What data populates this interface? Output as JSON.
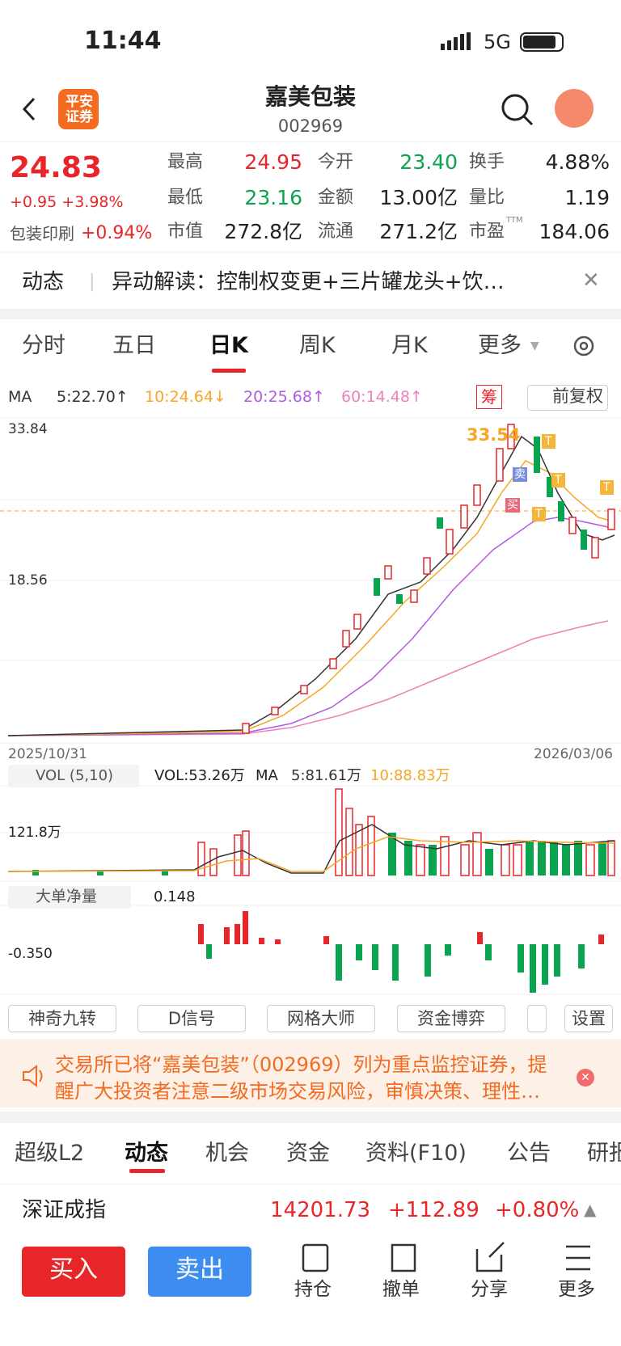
{
  "status_bar": {
    "time": "11:44",
    "network": "5G"
  },
  "header": {
    "logo": [
      "平安",
      "证券"
    ],
    "title": "嘉美包装",
    "code": "002969"
  },
  "quote": {
    "price": "24.83",
    "change": "+0.95",
    "change_pct": "+3.98%",
    "sector": "包装印刷",
    "sector_change": "+0.94%",
    "stats": [
      [
        {
          "label": "最高",
          "value": "24.95"
        },
        {
          "label": "今开",
          "value": "23.40"
        },
        {
          "label": "换手",
          "value": "4.88%"
        }
      ],
      [
        {
          "label": "最低",
          "value": "23.16"
        },
        {
          "label": "金额",
          "value": "13.00亿"
        },
        {
          "label": "量比",
          "value": "1.19"
        }
      ],
      [
        {
          "label": "市值",
          "value": "272.8亿"
        },
        {
          "label": "流通",
          "value": "271.2亿"
        },
        {
          "label": "市盈",
          "sup": "TTM",
          "value": "184.06"
        }
      ]
    ]
  },
  "news": {
    "tag": "动态",
    "text": "异动解读：控制权变更+三片罐龙头+饮…"
  },
  "chart_tabs": [
    "分时",
    "五日",
    "日K",
    "周K",
    "月K",
    "更多"
  ],
  "ma_row": {
    "label": "MA",
    "items": [
      "5:22.70↑",
      "10:24.64↓",
      "20:25.68↑",
      "60:14.48↑"
    ],
    "chip": "筹",
    "adjust": "前复权"
  },
  "price_chart": {
    "y_labels": [
      "33.84",
      "18.56"
    ],
    "high_label": "33.54",
    "start_date": "2025/10/31",
    "end_date": "2026/03/06",
    "sell_marker": "卖",
    "buy_marker": "买",
    "t_marker": "T"
  },
  "volume": {
    "indicator": "VOL (5,10)",
    "vol": "VOL:53.26万",
    "ma_label": "MA",
    "ma5": "5:81.61万",
    "ma10": "10:88.83万",
    "y_label": "121.8万"
  },
  "net_flow": {
    "indicator": "大单净量",
    "value": "0.148",
    "y_label": "-0.350"
  },
  "tools": [
    "神奇九转",
    "D信号",
    "网格大师",
    "资金博弈",
    "设置"
  ],
  "notice": [
    "交易所已将“嘉美包装”（002969）列为重点监控证券，提",
    "醒广大投资者注意二级市场交易风险，审慎决策、理性…"
  ],
  "info_tabs": [
    "超级L2",
    "动态",
    "机会",
    "资金",
    "资料(F10)",
    "公告",
    "研报"
  ],
  "index": {
    "name": "深证成指",
    "value": "14201.73",
    "change": "+112.89",
    "change_pct": "+0.80%"
  },
  "bottom_bar": {
    "buy": "买入",
    "sell": "卖出",
    "actions": [
      "持仓",
      "撤单",
      "分享",
      "更多"
    ]
  }
}
